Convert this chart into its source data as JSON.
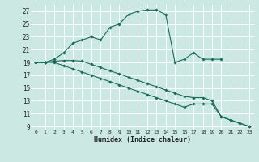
{
  "xlabel": "Humidex (Indice chaleur)",
  "bg_color": "#cbe8e3",
  "grid_color": "#ffffff",
  "line_color": "#1a6b5a",
  "xlim": [
    -0.5,
    23.5
  ],
  "ylim": [
    8.5,
    28.0
  ],
  "yticks": [
    9,
    11,
    13,
    15,
    17,
    19,
    21,
    23,
    25,
    27
  ],
  "xticks": [
    0,
    1,
    2,
    3,
    4,
    5,
    6,
    7,
    8,
    9,
    10,
    11,
    12,
    13,
    14,
    15,
    16,
    17,
    18,
    19,
    20,
    21,
    22,
    23
  ],
  "series1_x": [
    0,
    1,
    2,
    3,
    4,
    5,
    6,
    7,
    8,
    9,
    10,
    11,
    12,
    13,
    14,
    15,
    16,
    17,
    18,
    19,
    20
  ],
  "series1_y": [
    19,
    19,
    19.5,
    20.5,
    22.0,
    22.5,
    23.0,
    22.5,
    24.5,
    25.0,
    26.5,
    27.0,
    27.2,
    27.2,
    26.5,
    19.0,
    19.5,
    20.5,
    19.5,
    19.5,
    19.5
  ],
  "series2_x": [
    0,
    1,
    2,
    3,
    4,
    5,
    6,
    7,
    8,
    9,
    10,
    11,
    12,
    13,
    14,
    15,
    16,
    17,
    18,
    19,
    20,
    21,
    22,
    23
  ],
  "series2_y": [
    19,
    19,
    19,
    18.5,
    18,
    17.5,
    17,
    16.5,
    16,
    15.5,
    15,
    14.5,
    14,
    13.5,
    13,
    12.5,
    12,
    12.5,
    12.5,
    12.5,
    10.5,
    10,
    9.5,
    9
  ],
  "series3_x": [
    0,
    1,
    2,
    3,
    4,
    5,
    6,
    7,
    8,
    9,
    10,
    11,
    12,
    13,
    14,
    15,
    16,
    17,
    18,
    19,
    20,
    21,
    22,
    23
  ],
  "series3_y": [
    19,
    19,
    19.2,
    19.3,
    19.3,
    19.2,
    18.7,
    18.2,
    17.7,
    17.2,
    16.7,
    16.2,
    15.7,
    15.2,
    14.7,
    14.2,
    13.7,
    13.5,
    13.5,
    13.0,
    10.5,
    10.0,
    9.5,
    9.0
  ]
}
